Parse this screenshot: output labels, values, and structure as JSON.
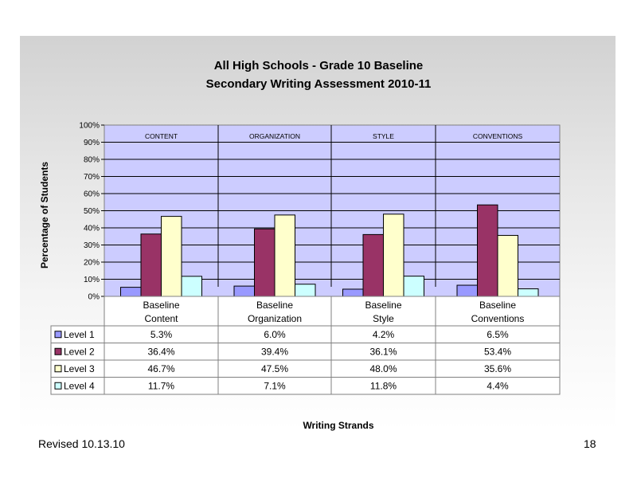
{
  "footer": {
    "revised": "Revised  10.13.10",
    "page_number": "18"
  },
  "colors": {
    "plot_bg": "#ccccff",
    "level1": "#9999ff",
    "level2": "#993366",
    "level3": "#ffffcc",
    "level4": "#ccffff"
  },
  "chart_data": {
    "type": "bar",
    "title": "All High Schools - Grade 10 Baseline",
    "subtitle": "Secondary Writing Assessment 2010-11",
    "ylabel": "Percentage of Students",
    "xlabel": "Writing Strands",
    "ylim": [
      0,
      100
    ],
    "yticks": [
      "0%",
      "10%",
      "20%",
      "30%",
      "40%",
      "50%",
      "60%",
      "70%",
      "80%",
      "90%",
      "100%"
    ],
    "grid": true,
    "section_labels": [
      "CONTENT",
      "ORGANIZATION",
      "STYLE",
      "CONVENTIONS"
    ],
    "categories": [
      [
        "Baseline",
        "Content"
      ],
      [
        "Baseline",
        "Organization"
      ],
      [
        "Baseline",
        "Style"
      ],
      [
        "Baseline",
        "Conventions"
      ]
    ],
    "series": [
      {
        "name": "Level 1",
        "color": "#9999ff",
        "values": [
          5.3,
          6.0,
          4.2,
          6.5
        ],
        "labels": [
          "5.3%",
          "6.0%",
          "4.2%",
          "6.5%"
        ]
      },
      {
        "name": "Level 2",
        "color": "#993366",
        "values": [
          36.4,
          39.4,
          36.1,
          53.4
        ],
        "labels": [
          "36.4%",
          "39.4%",
          "36.1%",
          "53.4%"
        ]
      },
      {
        "name": "Level 3",
        "color": "#ffffcc",
        "values": [
          46.7,
          47.5,
          48.0,
          35.6
        ],
        "labels": [
          "46.7%",
          "47.5%",
          "48.0%",
          "35.6%"
        ]
      },
      {
        "name": "Level 4",
        "color": "#ccffff",
        "values": [
          11.7,
          7.1,
          11.8,
          4.4
        ],
        "labels": [
          "11.7%",
          "7.1%",
          "11.8%",
          "4.4%"
        ]
      }
    ]
  }
}
